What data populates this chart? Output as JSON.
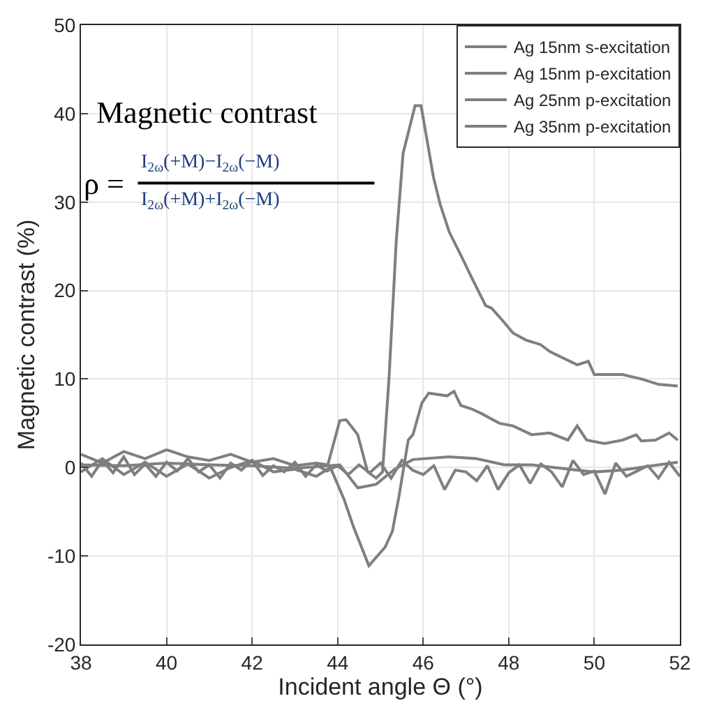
{
  "chart_data": {
    "type": "line",
    "xlabel": "Incident angle Θ (°)",
    "ylabel": "Magnetic contrast (%)",
    "xlim": [
      38,
      52
    ],
    "ylim": [
      -20,
      50
    ],
    "xticks": [
      38,
      40,
      42,
      44,
      46,
      48,
      50,
      52
    ],
    "yticks": [
      -20,
      -10,
      0,
      10,
      20,
      30,
      40,
      50
    ],
    "grid": true,
    "legend": "top right",
    "line_style": "solid",
    "marker": "none",
    "annotations": [
      "Magnetic contrast",
      "ρ =",
      "I$_{2ω}$(+M)−I$_{2ω}$(−M)",
      "I$_{2ω}$(+M)+I$_{2ω}$(−M)"
    ],
    "series": [
      {
        "name": "Ag 15nm s-excitation",
        "color": "#7f7f7f",
        "x": [
          38,
          38.25,
          38.5,
          38.75,
          39,
          39.25,
          39.5,
          39.75,
          40,
          40.25,
          40.5,
          40.75,
          41,
          41.25,
          41.5,
          41.75,
          42,
          42.25,
          42.5,
          42.75,
          43,
          43.25,
          43.5,
          43.75,
          44,
          44.25,
          44.5,
          44.75,
          45,
          45.25,
          45.5,
          45.75,
          46,
          46.25,
          46.5,
          46.75,
          47,
          47.25,
          47.5,
          47.75,
          48,
          48.25,
          48.5,
          48.75,
          49,
          49.25,
          49.5,
          49.75,
          50,
          50.25,
          50.5,
          50.75,
          51,
          51.25,
          51.5,
          51.75,
          52
        ],
        "values": [
          0.5,
          -1,
          0.8,
          -0.6,
          1.2,
          -0.8,
          0.4,
          -1,
          0.6,
          -0.4,
          1,
          -0.5,
          0.3,
          -1.2,
          0.5,
          -0.3,
          0.8,
          -0.9,
          0.2,
          -0.5,
          0.6,
          -1,
          0.3,
          -0.4,
          0.2,
          -0.8,
          0.3,
          -0.6,
          0.5,
          -1.2,
          0.8,
          -0.3,
          -0.8,
          0.2,
          -2.5,
          -0.3,
          -0.5,
          -1.5,
          0.2,
          -2.5,
          -0.6,
          0.3,
          -1.8,
          0.4,
          -0.5,
          -2.2,
          0.8,
          -0.8,
          -0.4,
          -3,
          0.5,
          -1,
          -0.4,
          0.2,
          -1.2,
          0.6,
          -1
        ]
      },
      {
        "name": "Ag 15nm p-excitation",
        "color": "#7f7f7f",
        "x": [
          38,
          38.5,
          39,
          39.5,
          40,
          40.5,
          41,
          41.5,
          42,
          42.5,
          43,
          43.5,
          43.77,
          44.05,
          44.2,
          44.47,
          44.7,
          44.9,
          45.05,
          45.2,
          45.37,
          45.53,
          45.81,
          45.95,
          46.24,
          46.4,
          46.61,
          46.88,
          47.14,
          47.46,
          47.6,
          47.84,
          48.1,
          48.4,
          48.74,
          48.96,
          49.6,
          49.86,
          50,
          50.24,
          50.66,
          51.1,
          51.5,
          51.95
        ],
        "values": [
          1.5,
          0.5,
          1.8,
          1,
          2,
          1.2,
          0.8,
          1.5,
          0.6,
          1,
          0.2,
          0.5,
          0.3,
          5.3,
          5.4,
          3.7,
          -0.5,
          -1.2,
          -0.5,
          10,
          25.6,
          35.5,
          40.9,
          40.9,
          32.8,
          29.7,
          26.6,
          24,
          21.4,
          18.3,
          18,
          16.7,
          15.2,
          14.4,
          13.9,
          13.1,
          11.6,
          12,
          10.5,
          10.5,
          10.5,
          10,
          9.4,
          9.2
        ]
      },
      {
        "name": "Ag 25nm p-excitation",
        "color": "#7f7f7f",
        "x": [
          38,
          38.5,
          39,
          39.5,
          40,
          40.5,
          41,
          41.5,
          42,
          42.5,
          43,
          43.5,
          43.83,
          44.15,
          44.37,
          44.73,
          45.11,
          45.28,
          45.44,
          45.65,
          45.76,
          45.97,
          46.13,
          46.56,
          46.72,
          46.88,
          47.14,
          47.36,
          47.78,
          48.1,
          48.54,
          48.96,
          49.38,
          49.6,
          49.82,
          50.24,
          50.66,
          50.98,
          51.1,
          51.43,
          51.75,
          51.95
        ],
        "values": [
          -0.5,
          1,
          -0.8,
          0.6,
          -1,
          0.4,
          -1.2,
          0,
          0.8,
          -0.5,
          -0.2,
          -1,
          0,
          -3.6,
          -6.7,
          -11.1,
          -9,
          -7.2,
          -3.1,
          3.1,
          3.7,
          7.3,
          8.4,
          8.1,
          8.6,
          7,
          6.6,
          6.1,
          5,
          4.7,
          3.7,
          3.9,
          3.1,
          4.7,
          3.1,
          2.7,
          3.1,
          3.7,
          3,
          3.1,
          3.9,
          3.1
        ]
      },
      {
        "name": "Ag 35nm p-excitation",
        "color": "#7f7f7f",
        "x": [
          38,
          39,
          40,
          41,
          42,
          43,
          44.05,
          44.47,
          44.9,
          45.33,
          45.76,
          46.6,
          47.24,
          47.9,
          48.54,
          49.4,
          50,
          50.66,
          51.5,
          51.95
        ],
        "values": [
          0.3,
          0.2,
          0.5,
          0.3,
          0.2,
          -0.1,
          0.3,
          -2.3,
          -1.9,
          -0.2,
          0.9,
          1.2,
          1,
          0.3,
          0.3,
          -0.2,
          -0.5,
          -0.3,
          0.3,
          0.6
        ]
      }
    ]
  }
}
